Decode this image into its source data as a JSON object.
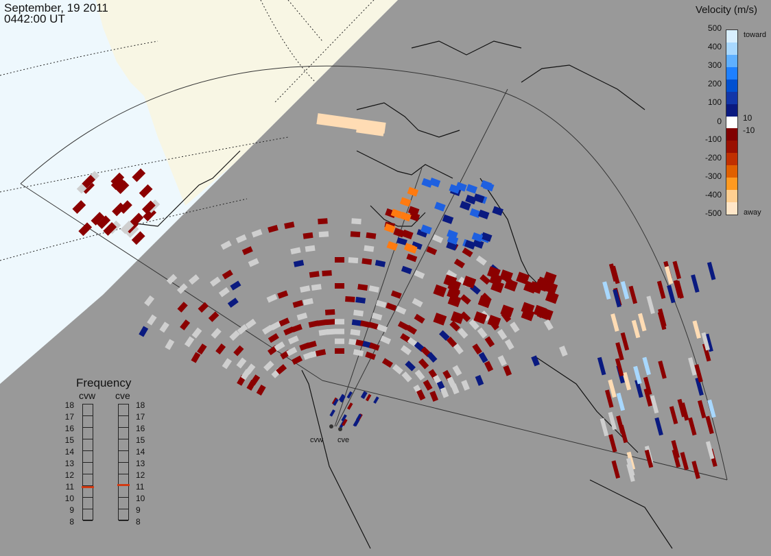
{
  "header": {
    "date": "September, 19 2011",
    "time": "0442:00 UT"
  },
  "legend": {
    "title": "Velocity (m/s)",
    "ticks": [
      "500",
      "400",
      "300",
      "200",
      "100",
      "10",
      "0",
      "-10",
      "-100",
      "-200",
      "-300",
      "-400",
      "-500"
    ],
    "toward_label": "toward",
    "away_label": "away",
    "colors": [
      "#d8efff",
      "#a8d8ff",
      "#5fb0ff",
      "#1e80ff",
      "#0050d0",
      "#1236a8",
      "#0a1a80",
      "#ffffff",
      "#800000",
      "#9a1000",
      "#c03000",
      "#e06000",
      "#ff9a20",
      "#ffcf90",
      "#ffe6c8"
    ]
  },
  "frequency": {
    "title": "Frequency",
    "radars": [
      {
        "code": "cvw",
        "value_mhz": 11
      },
      {
        "code": "cve",
        "value_mhz": 11
      }
    ],
    "scale": [
      "18",
      "17",
      "16",
      "15",
      "14",
      "13",
      "12",
      "11",
      "10",
      "9",
      "8"
    ],
    "marker_color": "#d23a12"
  },
  "radar_sites": [
    {
      "code": "cvw"
    },
    {
      "code": "cve"
    }
  ],
  "map_colors": {
    "land": "#999999",
    "daylight_sea": "#eef8fd",
    "daylight_land": "#f8f6e4",
    "coastline": "#111111",
    "ground_scatter": "#cfcfcf"
  }
}
